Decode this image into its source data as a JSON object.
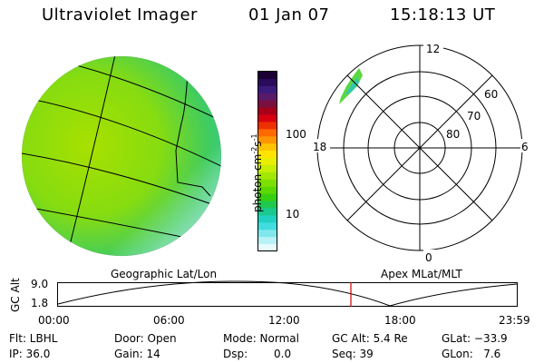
{
  "header": {
    "instrument": "Ultraviolet Imager",
    "date": "01 Jan 07",
    "time": "15:18:13 UT"
  },
  "colorbar": {
    "unit_label": "photon cm",
    "unit_exp1": "-2",
    "unit_mid": "s",
    "unit_exp2": "-1",
    "ticks": [
      "100",
      "10"
    ],
    "colors": [
      "#1a0033",
      "#2a0a5a",
      "#3a1b7a",
      "#5a1a6a",
      "#7a1040",
      "#a80018",
      "#d80010",
      "#ee3000",
      "#ff6a00",
      "#ff9600",
      "#ffc400",
      "#ffe400",
      "#e8f000",
      "#c6ee00",
      "#a2e800",
      "#7ee000",
      "#5ad800",
      "#36d010",
      "#20c850",
      "#1ac890",
      "#20d0c0",
      "#40dce0",
      "#80e8ec",
      "#b8f2f6",
      "#e8fbfc"
    ]
  },
  "polar_plot": {
    "labels": {
      "top": "12",
      "left": "18",
      "right": "6",
      "bottom": "0"
    },
    "ring_labels": [
      "60",
      "70",
      "80"
    ]
  },
  "altitude_plot": {
    "axis_label": "GC Alt",
    "y_ticks": [
      "9.0",
      "1.8"
    ],
    "left_title": "Geographic Lat/Lon",
    "right_title": "Apex MLat/MLT",
    "x_ticks": [
      "00:00",
      "06:00",
      "12:00",
      "18:00",
      "23:59"
    ],
    "accent_color": "#cc0000"
  },
  "status": {
    "flt": "Flt: LBHL",
    "ip": "IP: 36.0",
    "door": "Door: Open",
    "gain": "Gain: 14",
    "mode": "Mode: Normal",
    "dsp": "Dsp:",
    "dsp_value": "0.0",
    "gc_alt": "GC Alt: 5.4 Re",
    "seq": "Seq: 39",
    "glat": "GLat: −33.9",
    "glon": "GLon:   7.6"
  }
}
